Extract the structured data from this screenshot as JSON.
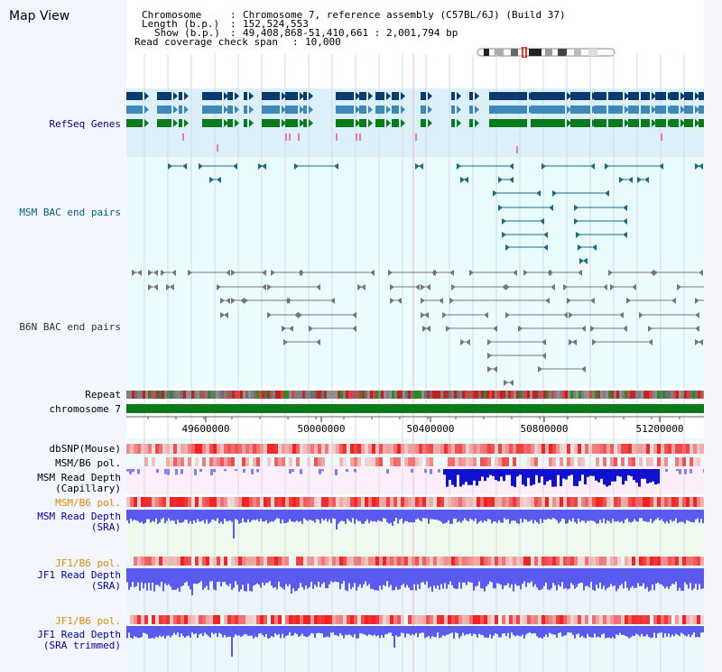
{
  "title": "Map View",
  "header": {
    "chromosome_key": "Chromosome",
    "chromosome_value": "Chromosome 7, reference assembly (C57BL/6J) (Build 37)",
    "length_key": "Length (b.p.)",
    "length_value": "152,524,553",
    "show_key": "Show (b.p.)",
    "show_value": "49,408,868-51,410,661 : 2,001,794 bp",
    "coverage_key": "Read coverage check span",
    "coverage_value": "10,000"
  },
  "tracks": {
    "refseq": "RefSeq Genes",
    "msm_bac": "MSM BAC end pairs",
    "b6n_bac": "B6N BAC end pairs",
    "repeat": "Repeat",
    "chromosome": "chromosome 7",
    "dbsnp": "dbSNP(Mouse)",
    "msm_b6_pol_1": "MSM/B6 pol.",
    "msm_read_depth_cap_1": "MSM Read Depth",
    "msm_read_depth_cap_2": "(Capillary)",
    "msm_b6_pol_2": "MSM/B6 pol.",
    "msm_read_depth_sra_1": "MSM Read Depth",
    "msm_read_depth_sra_2": "(SRA)",
    "jf1_b6_pol_1": "JF1/B6 pol.",
    "jf1_read_depth_sra_1": "JF1 Read Depth",
    "jf1_read_depth_sra_2": "(SRA)",
    "jf1_b6_pol_2": "JF1/B6 pol.",
    "jf1_read_depth_trim_1": "JF1 Read Depth",
    "jf1_read_depth_trim_2": "(SRA trimmed)"
  },
  "axis": {
    "ticks": [
      "49600000",
      "50000000",
      "50400000",
      "50800000",
      "51200000"
    ]
  },
  "colors": {
    "refseq_navy": "#0b3a6e",
    "refseq_mid": "#3d88b8",
    "refseq_green": "#0a7a1a",
    "msm_bac": "#1a6a8a",
    "b6n_bac": "#777777",
    "chromosome_bar": "#0a7a1a",
    "depth_blue": "#5a5aee",
    "depth_dark": "#1010d0"
  }
}
